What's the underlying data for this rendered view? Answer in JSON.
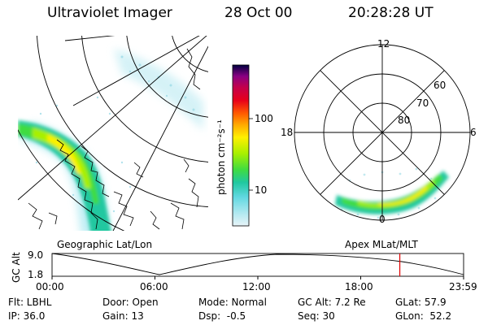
{
  "header": {
    "title": "Ultraviolet Imager",
    "date": "28 Oct 00",
    "time": "20:28:28 UT"
  },
  "colorbar": {
    "unit_label": "photon cm⁻²s⁻¹",
    "tick_labels": [
      "100",
      "10"
    ],
    "colors": [
      "#000040",
      "#40006a",
      "#8a0082",
      "#c4004a",
      "#e8001a",
      "#ff5a00",
      "#ffa800",
      "#fff000",
      "#a8f000",
      "#40dc40",
      "#20c8a0",
      "#60d8e0",
      "#b0e8f0",
      "#e8f4f8"
    ]
  },
  "geo_panel": {
    "label": "Geographic Lat/Lon"
  },
  "polar_panel": {
    "label": "Apex MLat/MLT",
    "mlt_labels": {
      "top": "12",
      "left": "18",
      "right": "6",
      "bottom": "0"
    },
    "lat_labels": [
      "60",
      "70",
      "80"
    ]
  },
  "alt_strip": {
    "ylabel": "GC Alt",
    "yticks": [
      "9.0",
      "1.8"
    ],
    "xticks": [
      "00:00",
      "06:00",
      "12:00",
      "18:00",
      "23:59"
    ],
    "current_time_fraction": 0.845,
    "marker_color": "#e00000"
  },
  "info": {
    "row1": [
      "Flt: LBHL",
      "Door: Open",
      "Mode: Normal",
      "GC Alt: 7.2 Re",
      "GLat: 57.9"
    ],
    "row2": [
      "IP: 36.0",
      "Gain: 13",
      "Dsp:  -0.5",
      "Seq: 30",
      "GLon:  52.2"
    ]
  }
}
